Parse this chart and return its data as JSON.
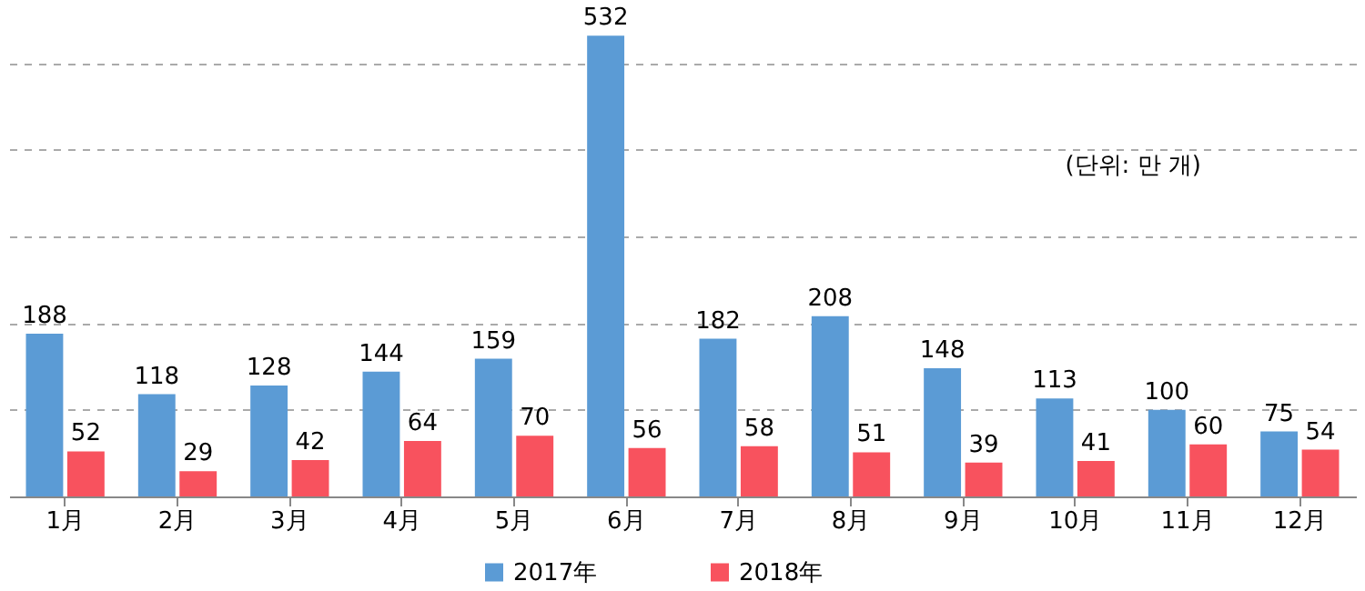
{
  "chart_data": {
    "type": "bar",
    "categories": [
      "1月",
      "2月",
      "3月",
      "4月",
      "5月",
      "6月",
      "7月",
      "8月",
      "9月",
      "10月",
      "11月",
      "12月"
    ],
    "series": [
      {
        "name": "2017年",
        "color": "#5b9bd5",
        "values": [
          188,
          118,
          128,
          144,
          159,
          532,
          182,
          208,
          148,
          113,
          100,
          75
        ]
      },
      {
        "name": "2018年",
        "color": "#f8525e",
        "values": [
          52,
          29,
          42,
          64,
          70,
          56,
          58,
          51,
          39,
          41,
          60,
          54
        ]
      }
    ],
    "yticks": [
      {
        "value": 0,
        "label": null
      },
      {
        "value": 100,
        "label": null
      },
      {
        "value": 200,
        "label": null
      },
      {
        "value": 300,
        "label": null
      },
      {
        "value": 400,
        "label": null
      },
      {
        "value": 500,
        "label": null
      }
    ],
    "tick_labels": "x",
    "grid": "y",
    "data_labels": true,
    "legend": "bottom",
    "annotations": [
      "(단위: 만 개)"
    ]
  }
}
